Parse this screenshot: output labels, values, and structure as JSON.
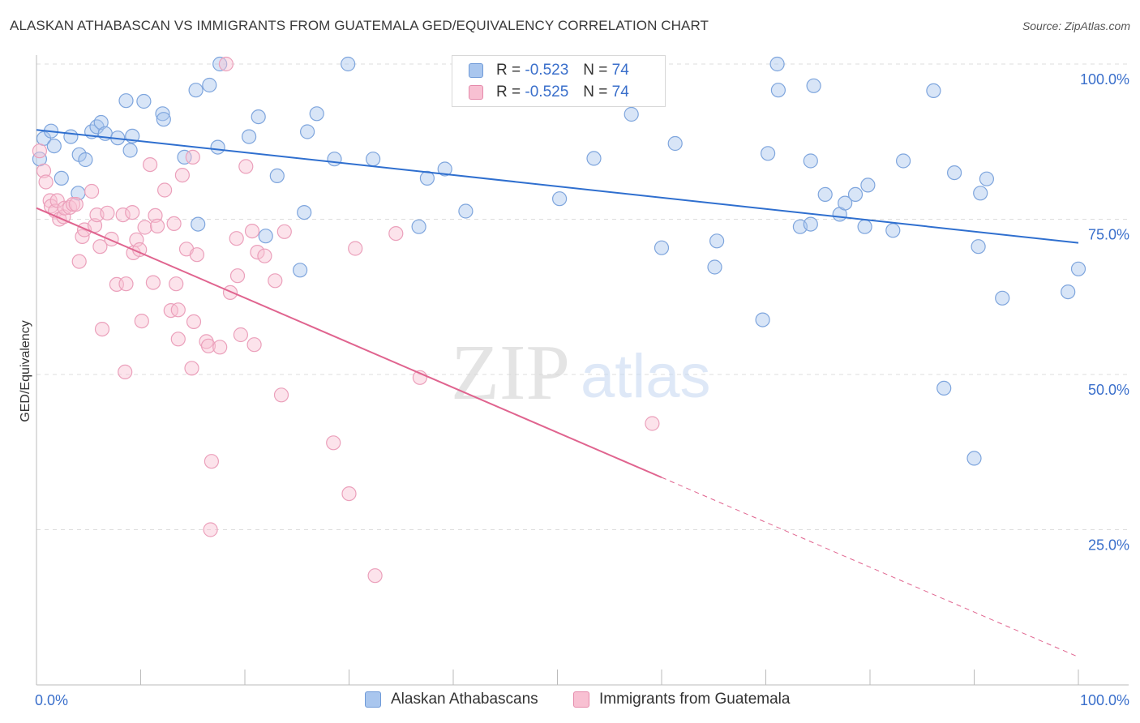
{
  "title": "ALASKAN ATHABASCAN VS IMMIGRANTS FROM GUATEMALA GED/EQUIVALENCY CORRELATION CHART",
  "source": "Source: ZipAtlas.com",
  "watermark": {
    "zip": "ZIP",
    "atlas": "atlas"
  },
  "stats": [
    {
      "r_label": "R =",
      "r_value": "-0.523",
      "n_label": "N =",
      "n_value": "74",
      "color": "#a9c6ee",
      "border": "#6f9ad8"
    },
    {
      "r_label": "R =",
      "r_value": "-0.525",
      "n_label": "N =",
      "n_value": "74",
      "color": "#f8c0d2",
      "border": "#e58aab"
    }
  ],
  "legend": [
    {
      "label": "Alaskan Athabascans",
      "color": "#a9c6ee",
      "border": "#6f9ad8"
    },
    {
      "label": "Immigrants from Guatemala",
      "color": "#f8c0d2",
      "border": "#e58aab"
    }
  ],
  "colors": {
    "blue_line": "#2f6fcf",
    "pink_line": "#e0648f",
    "axis_text": "#3a6fcb",
    "grid": "#dddddd"
  },
  "chart_data": {
    "type": "scatter",
    "ylabel": "GED/Equivalency",
    "xlabel": "",
    "xlim": [
      0,
      100
    ],
    "ylim": [
      0,
      100
    ],
    "x_tick_labels": [
      "0.0%",
      "100.0%"
    ],
    "y_tick_labels": [
      {
        "value": 100,
        "label": "100.0%"
      },
      {
        "value": 75,
        "label": "75.0%"
      },
      {
        "value": 50,
        "label": "50.0%"
      },
      {
        "value": 25,
        "label": "25.0%"
      }
    ],
    "grid": true,
    "series": [
      {
        "name": "Alaskan Athabascans",
        "points": [
          [
            0.3,
            84.7
          ],
          [
            0.7,
            88.0
          ],
          [
            1.4,
            89.2
          ],
          [
            1.7,
            86.8
          ],
          [
            2.4,
            81.6
          ],
          [
            3.3,
            88.3
          ],
          [
            4.0,
            79.2
          ],
          [
            4.1,
            85.4
          ],
          [
            4.7,
            84.6
          ],
          [
            5.3,
            89.1
          ],
          [
            5.8,
            89.9
          ],
          [
            6.2,
            90.6
          ],
          [
            6.6,
            88.8
          ],
          [
            7.8,
            88.1
          ],
          [
            8.6,
            94.1
          ],
          [
            9.0,
            86.1
          ],
          [
            9.2,
            88.4
          ],
          [
            10.3,
            94.0
          ],
          [
            12.1,
            92.0
          ],
          [
            12.2,
            91.1
          ],
          [
            14.2,
            85.0
          ],
          [
            15.3,
            95.8
          ],
          [
            15.5,
            74.2
          ],
          [
            16.6,
            96.6
          ],
          [
            17.4,
            86.6
          ],
          [
            17.6,
            100.0
          ],
          [
            20.4,
            88.3
          ],
          [
            21.3,
            91.5
          ],
          [
            22.0,
            72.3
          ],
          [
            23.1,
            82.0
          ],
          [
            25.3,
            66.8
          ],
          [
            25.7,
            76.1
          ],
          [
            26.0,
            89.1
          ],
          [
            26.9,
            92.0
          ],
          [
            28.6,
            84.7
          ],
          [
            29.9,
            100.0
          ],
          [
            32.3,
            84.7
          ],
          [
            36.7,
            73.8
          ],
          [
            37.5,
            81.6
          ],
          [
            39.2,
            83.1
          ],
          [
            41.2,
            76.3
          ],
          [
            50.2,
            78.3
          ],
          [
            53.5,
            84.8
          ],
          [
            57.1,
            91.9
          ],
          [
            60.0,
            70.4
          ],
          [
            61.3,
            87.2
          ],
          [
            65.3,
            71.5
          ],
          [
            65.1,
            67.3
          ],
          [
            69.7,
            58.8
          ],
          [
            70.2,
            85.6
          ],
          [
            71.1,
            100.0
          ],
          [
            71.2,
            95.8
          ],
          [
            73.3,
            73.8
          ],
          [
            74.3,
            74.2
          ],
          [
            74.3,
            84.4
          ],
          [
            74.6,
            96.5
          ],
          [
            75.7,
            79.0
          ],
          [
            77.1,
            75.8
          ],
          [
            77.6,
            77.6
          ],
          [
            78.6,
            79.0
          ],
          [
            79.5,
            73.8
          ],
          [
            79.8,
            80.5
          ],
          [
            82.2,
            73.2
          ],
          [
            83.2,
            84.4
          ],
          [
            86.1,
            95.7
          ],
          [
            87.1,
            47.8
          ],
          [
            88.1,
            82.5
          ],
          [
            90.0,
            36.5
          ],
          [
            90.4,
            70.6
          ],
          [
            90.6,
            79.2
          ],
          [
            91.2,
            81.5
          ],
          [
            92.7,
            62.3
          ],
          [
            99.0,
            63.3
          ],
          [
            100.0,
            67.0
          ]
        ],
        "trend": {
          "x": [
            0,
            100
          ],
          "y": [
            89.4,
            71.2
          ]
        }
      },
      {
        "name": "Immigrants from Guatemala",
        "points": [
          [
            0.3,
            86.0
          ],
          [
            0.7,
            82.8
          ],
          [
            0.9,
            81.0
          ],
          [
            1.3,
            78.0
          ],
          [
            1.4,
            77.1
          ],
          [
            1.8,
            76.3
          ],
          [
            2.0,
            78.0
          ],
          [
            2.2,
            75.0
          ],
          [
            2.6,
            75.4
          ],
          [
            2.7,
            76.8
          ],
          [
            3.2,
            76.9
          ],
          [
            3.5,
            77.4
          ],
          [
            3.8,
            77.4
          ],
          [
            4.1,
            68.2
          ],
          [
            4.4,
            72.2
          ],
          [
            4.6,
            73.3
          ],
          [
            5.3,
            79.5
          ],
          [
            5.6,
            74.0
          ],
          [
            5.8,
            75.7
          ],
          [
            6.1,
            70.6
          ],
          [
            6.3,
            57.3
          ],
          [
            6.8,
            76.0
          ],
          [
            7.2,
            71.8
          ],
          [
            7.7,
            64.5
          ],
          [
            8.3,
            75.7
          ],
          [
            8.5,
            50.4
          ],
          [
            8.6,
            64.6
          ],
          [
            9.2,
            76.1
          ],
          [
            9.3,
            69.6
          ],
          [
            9.6,
            71.7
          ],
          [
            9.9,
            70.1
          ],
          [
            10.1,
            58.6
          ],
          [
            10.4,
            73.7
          ],
          [
            10.9,
            83.8
          ],
          [
            11.2,
            64.8
          ],
          [
            11.4,
            75.6
          ],
          [
            11.6,
            73.9
          ],
          [
            12.3,
            79.7
          ],
          [
            12.9,
            60.3
          ],
          [
            13.4,
            64.6
          ],
          [
            13.6,
            60.4
          ],
          [
            13.6,
            55.7
          ],
          [
            14.0,
            82.1
          ],
          [
            14.4,
            70.2
          ],
          [
            14.9,
            51.0
          ],
          [
            15.0,
            85.0
          ],
          [
            15.1,
            58.5
          ],
          [
            15.4,
            69.3
          ],
          [
            16.3,
            55.3
          ],
          [
            16.5,
            54.6
          ],
          [
            16.8,
            36.0
          ],
          [
            16.7,
            25.0
          ],
          [
            17.6,
            54.4
          ],
          [
            18.6,
            63.2
          ],
          [
            19.2,
            71.9
          ],
          [
            19.3,
            65.9
          ],
          [
            19.6,
            56.4
          ],
          [
            20.1,
            83.5
          ],
          [
            20.7,
            73.1
          ],
          [
            21.2,
            69.7
          ],
          [
            21.9,
            69.1
          ],
          [
            22.9,
            65.1
          ],
          [
            23.5,
            46.7
          ],
          [
            23.8,
            73.0
          ],
          [
            28.5,
            39.0
          ],
          [
            30.0,
            30.8
          ],
          [
            30.6,
            70.3
          ],
          [
            32.5,
            17.6
          ],
          [
            34.5,
            72.7
          ],
          [
            36.8,
            49.5
          ],
          [
            59.1,
            42.1
          ],
          [
            20.9,
            54.8
          ],
          [
            13.2,
            74.3
          ],
          [
            18.2,
            100.0
          ]
        ],
        "trend": {
          "x": [
            0,
            100
          ],
          "y": [
            76.8,
            4.5
          ],
          "solid_to": 60
        }
      }
    ]
  }
}
